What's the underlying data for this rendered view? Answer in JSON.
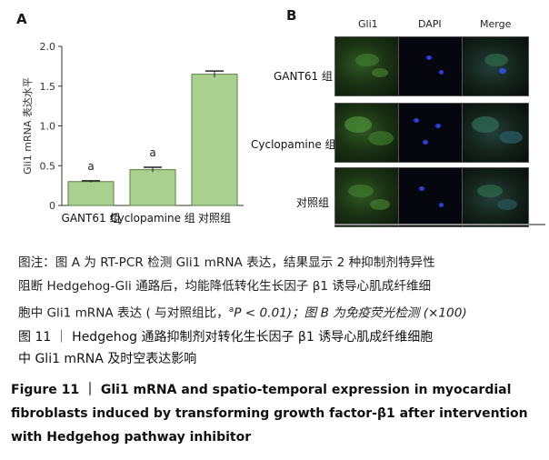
{
  "panel_a_label": "A",
  "panel_b_label": "B",
  "chart_data": {
    "type": "bar",
    "categories": [
      "GANT61 组",
      "Cyclopamine 组",
      "对照组"
    ],
    "values": [
      0.3,
      0.45,
      1.65
    ],
    "errors": [
      0.01,
      0.03,
      0.04
    ],
    "annotations": [
      "a",
      "a",
      ""
    ],
    "ylabel": "Gli1 mRNA 表达水平",
    "ylim": [
      0,
      2.0
    ],
    "yticks": [
      "0",
      "0.5",
      "1.0",
      "1.5",
      "2.0"
    ],
    "bar_color": "#a9d08e",
    "bar_edge": "#5b7f45"
  },
  "micrographs": {
    "columns": [
      "Gli1",
      "DAPI",
      "Merge"
    ],
    "rows": [
      "GANT61 组",
      "Cyclopamine 组",
      "对照组"
    ]
  },
  "caption": {
    "line1": "图注：图 A 为 RT-PCR 检测 Gli1 mRNA 表达，结果显示 2 种抑制剂特异性",
    "line2": "阻断 Hedgehog-Gli 通路后，均能降低转化生长因子 β1 诱导心肌成纤维细",
    "line3_pre": "胞中 Gli1 mRNA 表达 ( 与对照组比，",
    "line3_sup": "a",
    "line3_post": "P < 0.01)；图 B 为免疫荧光检测 (×100)",
    "title_cn_1": "图 11 ｜ Hedgehog 通路抑制剂对转化生长因子 β1 诱导心肌成纤维细胞",
    "title_cn_2": "中 Gli1 mRNA 及时空表达影响",
    "title_en_1": "Figure 11 ｜ Gli1 mRNA and spatio-temporal expression in myocardial",
    "title_en_2": "fibroblasts induced by transforming growth factor-β1 after intervention",
    "title_en_3": "with Hedgehog pathway inhibitor"
  }
}
